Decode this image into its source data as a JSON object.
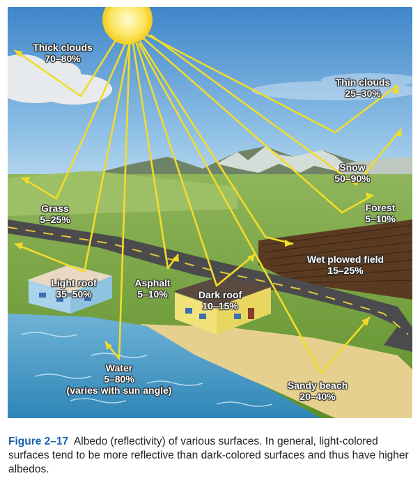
{
  "labels": {
    "thick_clouds": {
      "name": "Thick clouds",
      "value": "70–80%"
    },
    "thin_clouds": {
      "name": "Thin clouds",
      "value": "25–30%"
    },
    "snow": {
      "name": "Snow",
      "value": "50–90%"
    },
    "forest": {
      "name": "Forest",
      "value": "5–10%"
    },
    "grass": {
      "name": "Grass",
      "value": "5–25%"
    },
    "wet_plowed_field": {
      "name": "Wet plowed field",
      "value": "15–25%"
    },
    "light_roof": {
      "name": "Light roof",
      "value": "35–50%"
    },
    "asphalt": {
      "name": "Asphalt",
      "value": "5–10%"
    },
    "dark_roof": {
      "name": "Dark roof",
      "value": "10–15%"
    },
    "water": {
      "name": "Water",
      "value": "5–80%",
      "note": "(varies with sun angle)"
    },
    "sandy_beach": {
      "name": "Sandy beach",
      "value": "20–40%"
    }
  },
  "caption": {
    "figure_number": "Figure 2–17",
    "text": "Albedo (reflectivity) of various surfaces. In general, light-colored surfaces tend to be more reflective than dark-colored surfaces and thus have higher albedos."
  },
  "colors": {
    "ray": "#f2dc2a",
    "sky": "#4b8fcf",
    "figure_label": "#1a5fae"
  }
}
